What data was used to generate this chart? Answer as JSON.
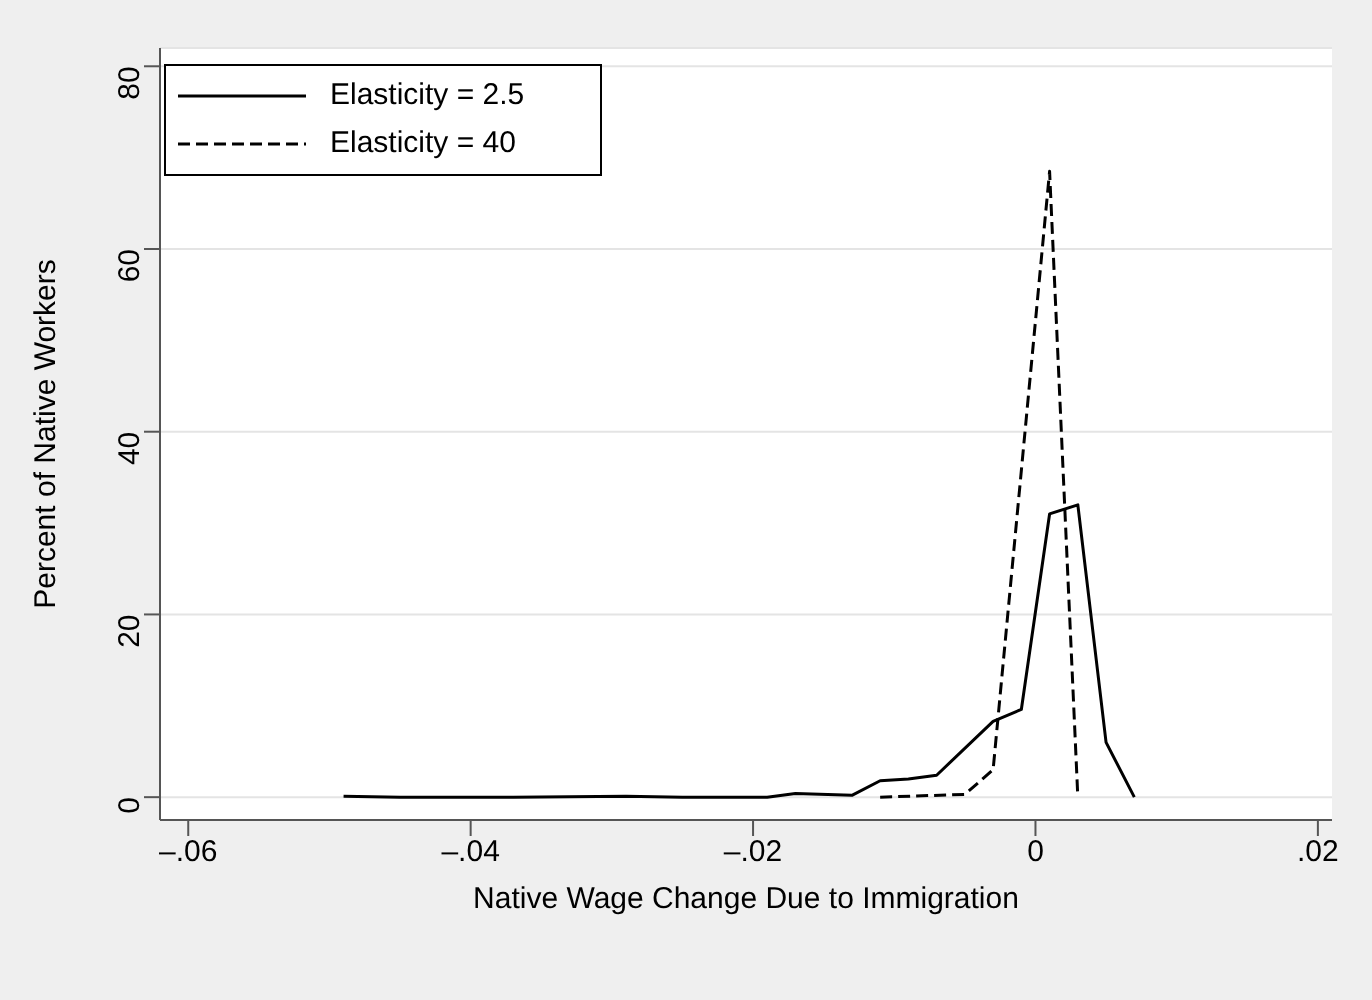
{
  "chart_data": {
    "type": "line",
    "xlabel": "Native Wage Change Due to Immigration",
    "ylabel": "Percent of Native Workers",
    "xlim": [
      -0.062,
      0.021
    ],
    "xticks": [
      {
        "value": -0.06,
        "label": "–.06"
      },
      {
        "value": -0.04,
        "label": "–.04"
      },
      {
        "value": -0.02,
        "label": "–.02"
      },
      {
        "value": 0,
        "label": "0"
      },
      {
        "value": 0.02,
        "label": ".02"
      }
    ],
    "ylim": [
      -2.5,
      82
    ],
    "yticks": [
      0,
      20,
      40,
      60,
      80
    ],
    "grid": "y",
    "legend": "top left",
    "marker": "none",
    "series": [
      {
        "name": "Elasticity = 2.5",
        "color": "#000000",
        "line_style": "solid",
        "x": [
          -0.049,
          -0.045,
          -0.037,
          -0.029,
          -0.025,
          -0.019,
          -0.017,
          -0.013,
          -0.011,
          -0.009,
          -0.007,
          -0.003,
          -0.001,
          0.001,
          0.003,
          0.005,
          0.007
        ],
        "values": [
          0.1,
          0,
          0,
          0.1,
          0,
          0,
          0.4,
          0.2,
          1.8,
          2,
          2.4,
          8.3,
          9.6,
          31,
          32,
          6,
          0
        ]
      },
      {
        "name": "Elasticity = 40",
        "color": "#000000",
        "line_style": "dashed",
        "x": [
          -0.011,
          -0.005,
          -0.003,
          0.001,
          0.003
        ],
        "values": [
          0,
          0.3,
          3,
          68.5,
          0
        ]
      }
    ]
  }
}
